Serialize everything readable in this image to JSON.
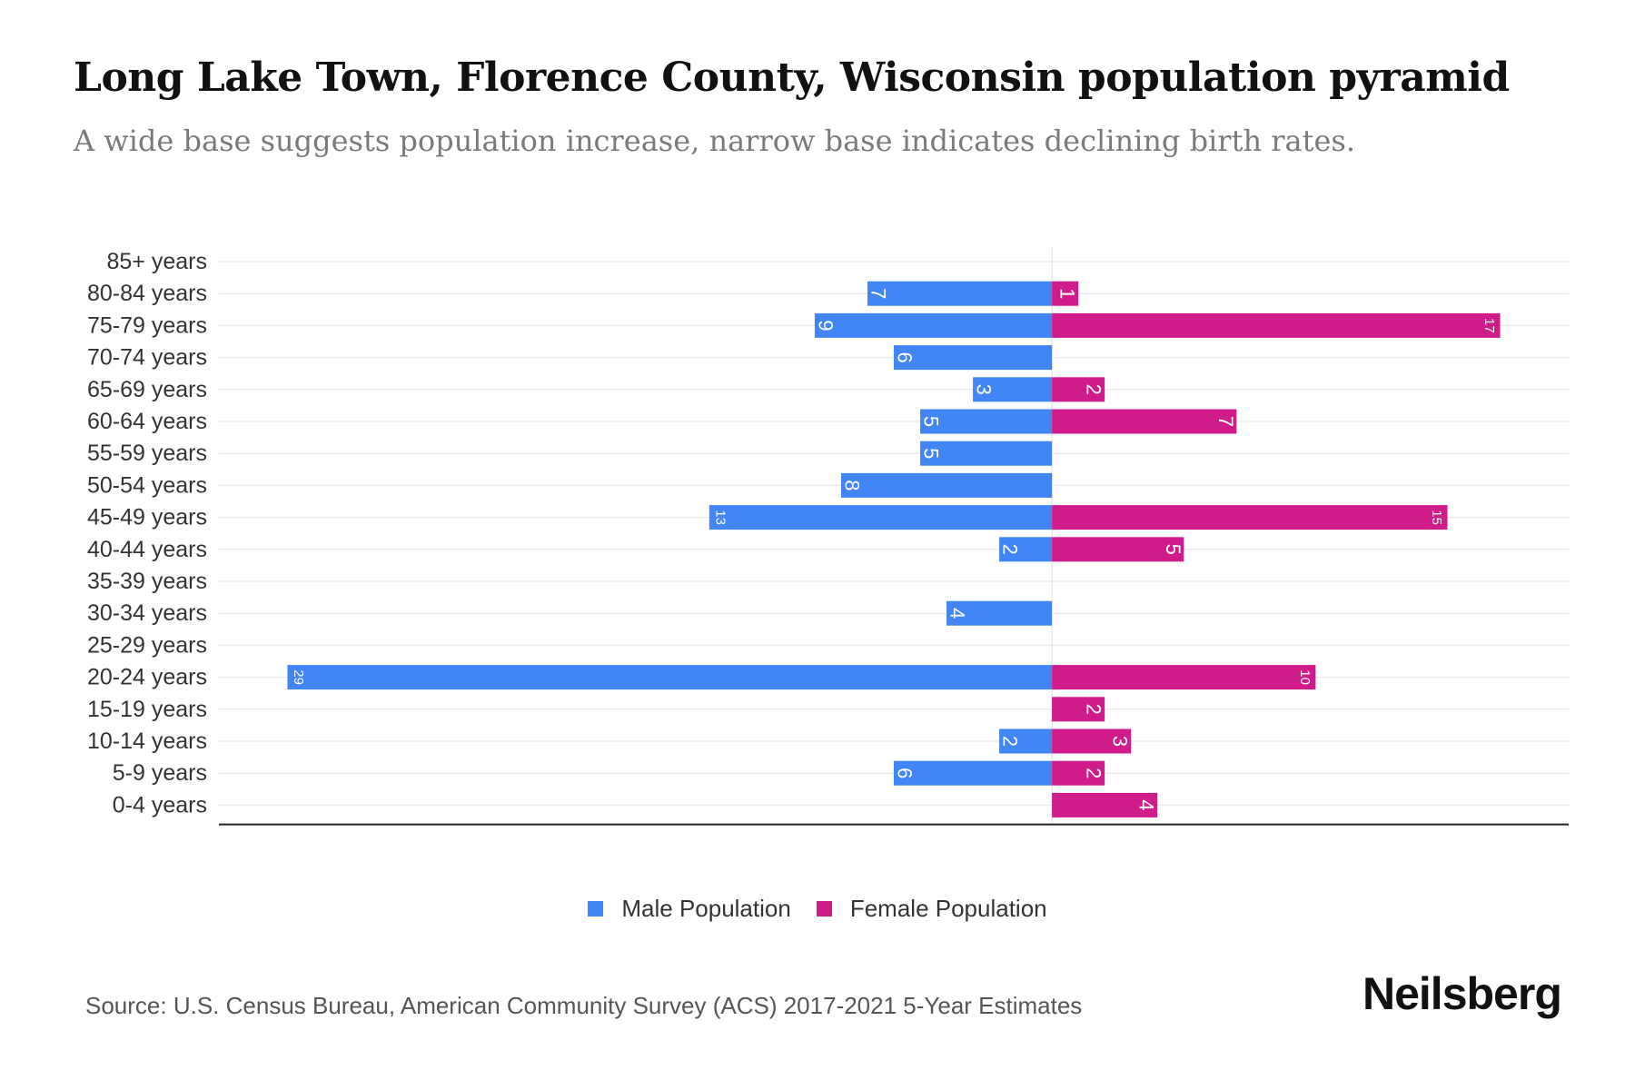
{
  "title": "Long Lake Town, Florence County, Wisconsin population pyramid",
  "subtitle": "A wide base suggests population increase, narrow base indicates declining birth rates.",
  "legend": {
    "male": "Male Population",
    "female": "Female Population"
  },
  "source": "Source: U.S. Census Bureau, American Community Survey (ACS) 2017-2021 5-Year Estimates",
  "brand": "Neilsberg",
  "colors": {
    "male": "#4285f4",
    "female": "#d01c8b",
    "grid": "#e6e6e6",
    "axis": "#222222",
    "label": "#333333"
  },
  "chart_data": {
    "type": "bar",
    "orientation": "horizontal-diverging",
    "categories": [
      "85+ years",
      "80-84 years",
      "75-79 years",
      "70-74 years",
      "65-69 years",
      "60-64 years",
      "55-59 years",
      "50-54 years",
      "45-49 years",
      "40-44 years",
      "35-39 years",
      "30-34 years",
      "25-29 years",
      "20-24 years",
      "15-19 years",
      "10-14 years",
      "5-9 years",
      "0-4 years"
    ],
    "series": [
      {
        "name": "Male Population",
        "values": [
          0,
          7,
          9,
          6,
          3,
          5,
          5,
          8,
          13,
          2,
          0,
          4,
          0,
          29,
          0,
          2,
          6,
          0
        ]
      },
      {
        "name": "Female Population",
        "values": [
          0,
          1,
          17,
          0,
          2,
          7,
          0,
          0,
          15,
          5,
          0,
          0,
          0,
          10,
          2,
          3,
          2,
          4
        ]
      }
    ],
    "xlim": [
      -31.6,
      19.6
    ],
    "grid": true,
    "data_labels": true,
    "legend_position": "bottom"
  }
}
